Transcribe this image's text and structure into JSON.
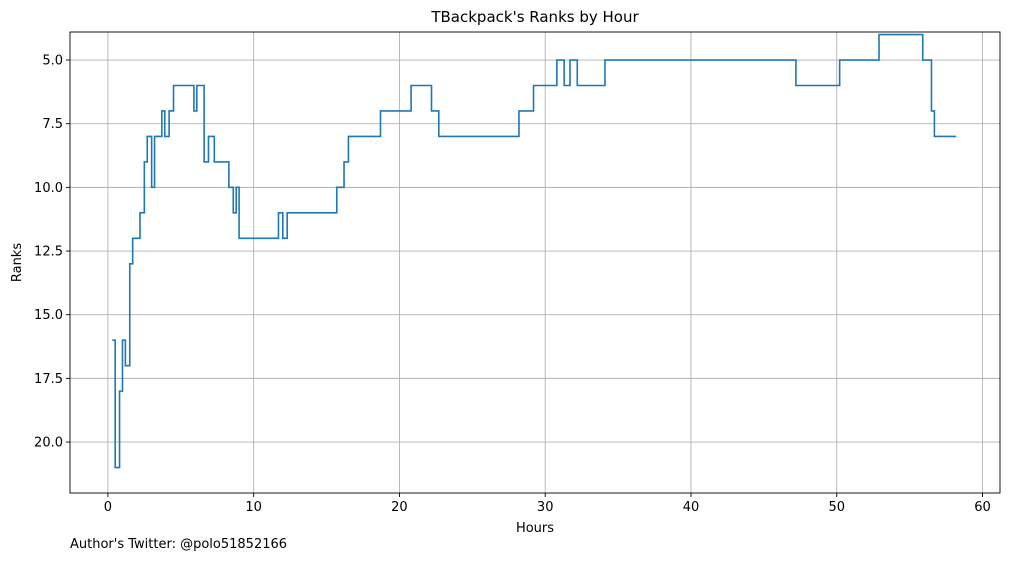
{
  "footer": {
    "text": "Author's Twitter: @polo51852166"
  },
  "chart_data": {
    "type": "line",
    "step": "post",
    "title": "TBackpack's Ranks by Hour",
    "xlabel": "Hours",
    "ylabel": "Ranks",
    "xlim": [
      -2.6,
      61.2
    ],
    "ylim": [
      22.0,
      3.9
    ],
    "y_inverted": true,
    "grid": true,
    "line_color": "#1f77b4",
    "x_ticks": [
      0,
      10,
      20,
      30,
      40,
      50,
      60
    ],
    "x_tick_labels": [
      "0",
      "10",
      "20",
      "30",
      "40",
      "50",
      "60"
    ],
    "y_ticks": [
      5.0,
      7.5,
      10.0,
      12.5,
      15.0,
      17.5,
      20.0
    ],
    "y_tick_labels": [
      "5.0",
      "7.5",
      "10.0",
      "12.5",
      "15.0",
      "17.5",
      "20.0"
    ],
    "series": [
      {
        "x": [
          0.3,
          0.5,
          0.8,
          1.0,
          1.2,
          1.5,
          1.7,
          2.2,
          2.5,
          2.7,
          3.0,
          3.2,
          3.7,
          3.9,
          4.2,
          4.5,
          5.9,
          6.1,
          6.6,
          6.9,
          7.3,
          8.3,
          8.6,
          8.8,
          9.0,
          9.3,
          11.7,
          12.0,
          12.3,
          15.7,
          16.2,
          16.5,
          18.7,
          20.8,
          22.2,
          22.7,
          28.2,
          29.2,
          30.8,
          31.3,
          31.7,
          32.2,
          34.1,
          47.2,
          50.2,
          52.9,
          55.9,
          56.5,
          56.7,
          58.2
        ],
        "y": [
          16,
          21,
          18,
          16,
          17,
          13,
          12,
          11,
          9,
          8,
          10,
          8,
          7,
          8,
          7,
          6,
          7,
          6,
          9,
          8,
          9,
          10,
          11,
          10,
          12,
          12,
          11,
          12,
          11,
          10,
          9,
          8,
          7,
          6,
          7,
          8,
          7,
          6,
          5,
          6,
          5,
          6,
          5,
          6,
          5,
          4,
          5,
          7,
          8,
          8
        ]
      }
    ]
  }
}
